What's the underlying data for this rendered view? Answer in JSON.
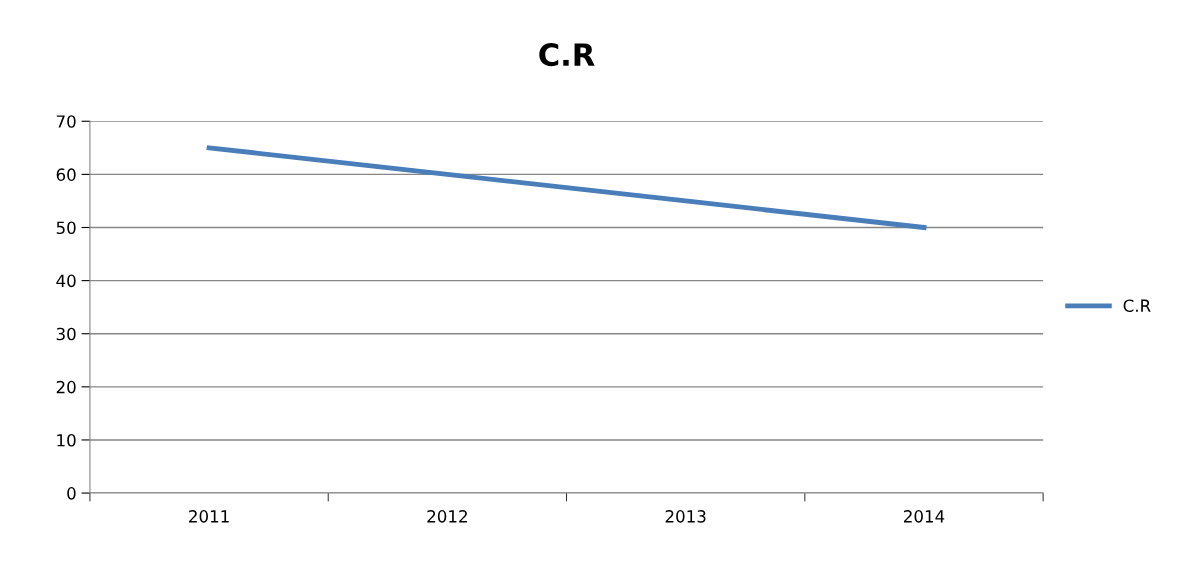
{
  "chart_data": {
    "type": "line",
    "title": "C.R",
    "categories": [
      "2011",
      "2012",
      "2013",
      "2014"
    ],
    "series": [
      {
        "name": "C.R",
        "color": "#4a7ebb",
        "values": [
          65,
          60,
          55,
          50
        ]
      }
    ],
    "ylim": [
      0,
      70
    ],
    "yticks": [
      0,
      10,
      20,
      30,
      40,
      50,
      60,
      70
    ],
    "grid": "y",
    "legend": "right",
    "marker": "none",
    "line_style": "solid"
  }
}
